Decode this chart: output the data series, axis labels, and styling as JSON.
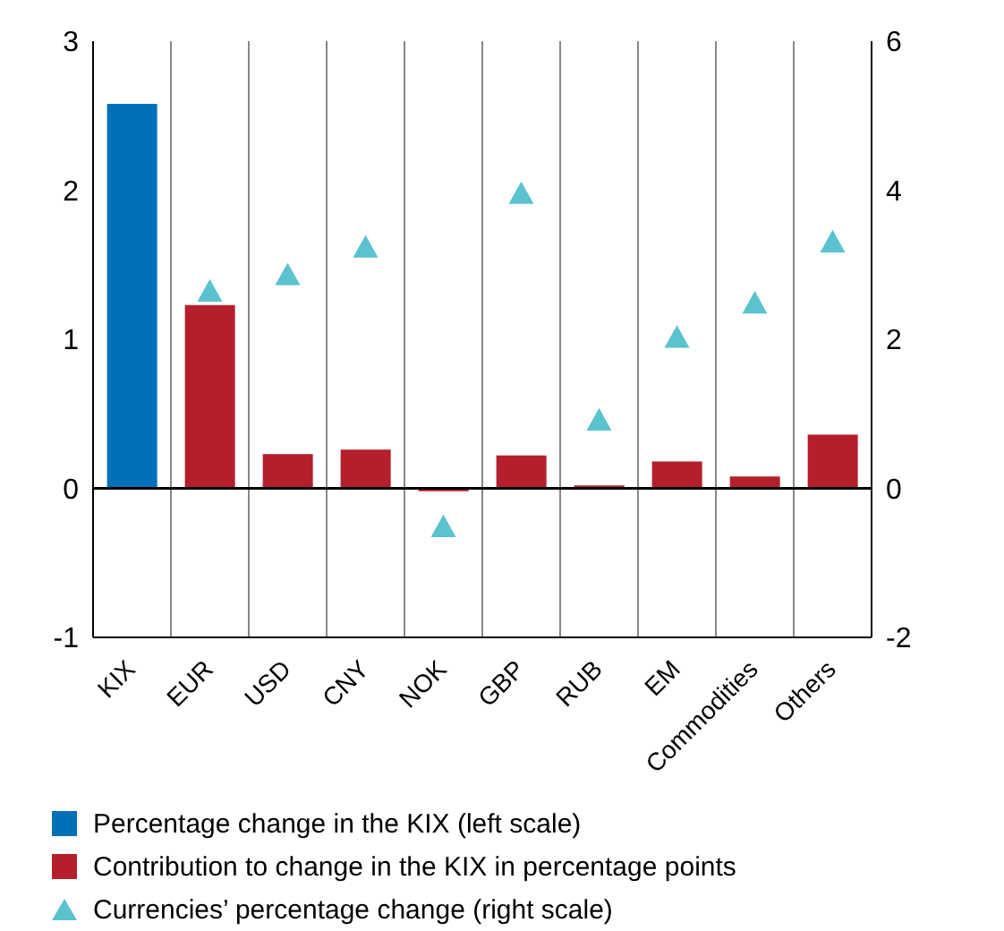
{
  "chart_data": {
    "type": "bar",
    "stacked": true,
    "categories": [
      "KIX",
      "EUR",
      "USD",
      "CNY",
      "NOK",
      "GBP",
      "RUB",
      "EM",
      "Commodities",
      "Others"
    ],
    "series": [
      {
        "name": "Percentage change in the KIX (left scale)",
        "color": "#0070b8",
        "values": [
          2.58,
          null,
          null,
          null,
          null,
          null,
          null,
          null,
          null,
          null
        ]
      },
      {
        "name": "Contribution to change in the KIX in percentage points",
        "color": "#b51f2c",
        "values": [
          null,
          1.23,
          0.23,
          0.26,
          -0.02,
          0.22,
          0.02,
          0.18,
          0.08,
          0.36
        ]
      },
      {
        "name": "Currencies’ percentage change (right scale)",
        "type": "scatter",
        "axis": "y2",
        "color": "#5bc2d0",
        "marker": "triangle",
        "values": [
          null,
          2.64,
          2.86,
          3.23,
          -0.52,
          3.95,
          0.91,
          2.02,
          2.48,
          3.3
        ]
      }
    ],
    "ylim": [
      -1,
      3
    ],
    "yticks": [
      -1,
      0,
      1,
      2,
      3
    ],
    "y2lim": [
      -2,
      6
    ],
    "y2ticks": [
      -2,
      0,
      2,
      4,
      6
    ],
    "ref_lines": [
      {
        "axis": "y",
        "value": 0,
        "color": "#000000"
      }
    ],
    "grid": true,
    "legend": "bottom"
  }
}
